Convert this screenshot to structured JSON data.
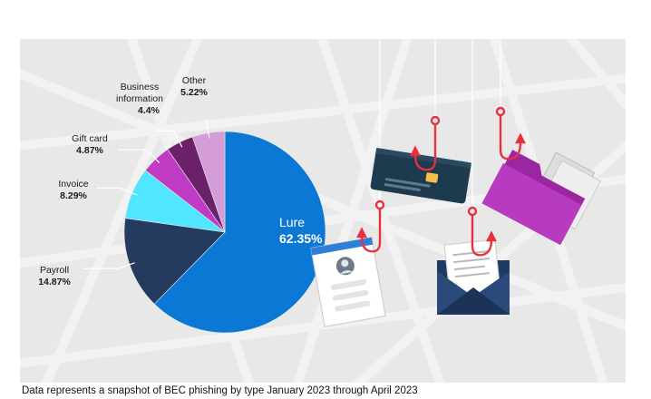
{
  "chart_data": {
    "type": "pie",
    "title": "",
    "caption": "Data represents a snapshot of BEC phishing by type January 2023 through April 2023",
    "slices": [
      {
        "label": "Lure",
        "display": "62.35%",
        "value": 62.35,
        "color": "#0a78d4"
      },
      {
        "label": "Payroll",
        "display": "14.87%",
        "value": 14.87,
        "color": "#243a5e"
      },
      {
        "label": "Invoice",
        "display": "8.29%",
        "value": 8.29,
        "color": "#50e6ff"
      },
      {
        "label": "Gift card",
        "display": "4.87%",
        "value": 4.87,
        "color": "#c03bc4"
      },
      {
        "label": "Business information",
        "display": "4.4%",
        "value": 4.4,
        "color": "#6b2169"
      },
      {
        "label": "Other",
        "display": "5.22%",
        "value": 5.22,
        "color": "#d59dd8"
      }
    ]
  },
  "illustration": {
    "icons": [
      "credit-card-icon",
      "folder-icon",
      "profile-document-icon",
      "envelope-icon",
      "fishing-hook-icon"
    ],
    "hook_color": "#e8313f",
    "background_color": "#e8e8e8"
  }
}
